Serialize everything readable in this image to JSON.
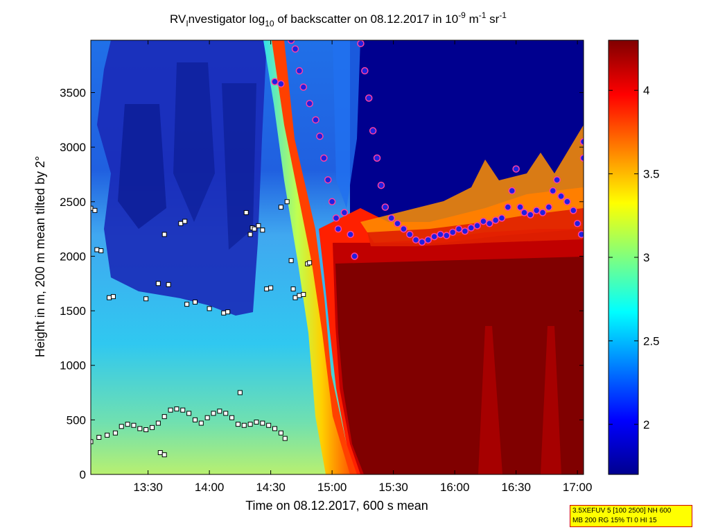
{
  "chart_data": {
    "type": "heatmap",
    "title": {
      "prefix": "RV",
      "prefix_sub": "I",
      "main": "nvestigator log",
      "sub10": "10",
      "mid": " of backscatter on 08.12.2017 in 10",
      "exp9": "-9",
      "unit_m": " m",
      "exp1": "-1",
      "unit_sr": " sr",
      "exp1b": "-1"
    },
    "xlabel": "Time on 08.12.2017, 600 s mean",
    "ylabel": "Height in m, 200 m mean tilted by 2°",
    "x_ticks": [
      "13:30",
      "14:00",
      "14:30",
      "15:00",
      "15:30",
      "16:00",
      "16:30",
      "17:00"
    ],
    "y_ticks": [
      "0",
      "500",
      "1000",
      "1500",
      "2000",
      "2500",
      "3000",
      "3500"
    ],
    "xlim_minutes": [
      782,
      1023
    ],
    "ylim": [
      0,
      3980
    ],
    "colorbar": {
      "ticks": [
        "2",
        "2.5",
        "3",
        "3.5",
        "4"
      ],
      "range": [
        1.7,
        4.3
      ],
      "colormap": "jet"
    },
    "markers": {
      "cloud_top_circles": [
        [
          872,
          3600
        ],
        [
          875,
          3580
        ],
        [
          880,
          3980
        ],
        [
          882,
          3900
        ],
        [
          884,
          3700
        ],
        [
          886,
          3550
        ],
        [
          889,
          3400
        ],
        [
          892,
          3250
        ],
        [
          894,
          3100
        ],
        [
          896,
          2900
        ],
        [
          898,
          2700
        ],
        [
          900,
          2500
        ],
        [
          902,
          2350
        ],
        [
          903,
          2250
        ],
        [
          906,
          2400
        ],
        [
          909,
          2200
        ],
        [
          911,
          2000
        ],
        [
          914,
          3950
        ],
        [
          916,
          3700
        ],
        [
          918,
          3450
        ],
        [
          920,
          3150
        ],
        [
          922,
          2900
        ],
        [
          924,
          2650
        ],
        [
          926,
          2450
        ],
        [
          929,
          2350
        ],
        [
          932,
          2300
        ],
        [
          935,
          2250
        ],
        [
          938,
          2200
        ],
        [
          941,
          2150
        ],
        [
          944,
          2130
        ],
        [
          947,
          2150
        ],
        [
          950,
          2180
        ],
        [
          953,
          2200
        ],
        [
          956,
          2190
        ],
        [
          959,
          2220
        ],
        [
          962,
          2250
        ],
        [
          965,
          2230
        ],
        [
          968,
          2260
        ],
        [
          971,
          2280
        ],
        [
          974,
          2320
        ],
        [
          977,
          2300
        ],
        [
          980,
          2330
        ],
        [
          983,
          2350
        ],
        [
          986,
          2450
        ],
        [
          988,
          2600
        ],
        [
          990,
          2800
        ],
        [
          992,
          2450
        ],
        [
          994,
          2400
        ],
        [
          997,
          2380
        ],
        [
          1000,
          2420
        ],
        [
          1003,
          2400
        ],
        [
          1006,
          2450
        ],
        [
          1008,
          2600
        ],
        [
          1010,
          2700
        ],
        [
          1012,
          2550
        ],
        [
          1015,
          2500
        ],
        [
          1018,
          2420
        ],
        [
          1020,
          2300
        ],
        [
          1022,
          2200
        ],
        [
          1023,
          3050
        ],
        [
          1023,
          2900
        ]
      ],
      "aerosol_squares": [
        [
          782,
          2440
        ],
        [
          784,
          2420
        ],
        [
          785,
          2060
        ],
        [
          787,
          2050
        ],
        [
          791,
          1620
        ],
        [
          793,
          1630
        ],
        [
          809,
          1610
        ],
        [
          815,
          1750
        ],
        [
          818,
          2200
        ],
        [
          820,
          1740
        ],
        [
          826,
          2300
        ],
        [
          828,
          2320
        ],
        [
          829,
          1560
        ],
        [
          833,
          1580
        ],
        [
          840,
          1520
        ],
        [
          847,
          1480
        ],
        [
          849,
          1490
        ],
        [
          855,
          750
        ],
        [
          858,
          2400
        ],
        [
          860,
          2200
        ],
        [
          861,
          2260
        ],
        [
          862,
          2250
        ],
        [
          864,
          2280
        ],
        [
          866,
          2240
        ],
        [
          868,
          1700
        ],
        [
          870,
          1710
        ],
        [
          875,
          2450
        ],
        [
          878,
          2500
        ],
        [
          880,
          1960
        ],
        [
          881,
          1700
        ],
        [
          882,
          1620
        ],
        [
          884,
          1640
        ],
        [
          886,
          1650
        ],
        [
          888,
          1930
        ],
        [
          889,
          1940
        ]
      ],
      "mixing_layer_squares": [
        [
          782,
          300
        ],
        [
          786,
          340
        ],
        [
          790,
          360
        ],
        [
          794,
          380
        ],
        [
          797,
          440
        ],
        [
          800,
          460
        ],
        [
          803,
          450
        ],
        [
          806,
          420
        ],
        [
          809,
          410
        ],
        [
          812,
          430
        ],
        [
          815,
          470
        ],
        [
          818,
          530
        ],
        [
          821,
          590
        ],
        [
          824,
          600
        ],
        [
          827,
          590
        ],
        [
          830,
          560
        ],
        [
          833,
          500
        ],
        [
          836,
          470
        ],
        [
          839,
          520
        ],
        [
          842,
          560
        ],
        [
          845,
          580
        ],
        [
          848,
          560
        ],
        [
          851,
          520
        ],
        [
          854,
          460
        ],
        [
          857,
          450
        ],
        [
          860,
          460
        ],
        [
          863,
          480
        ],
        [
          866,
          470
        ],
        [
          869,
          450
        ],
        [
          872,
          420
        ],
        [
          875,
          380
        ],
        [
          877,
          330
        ],
        [
          778,
          300
        ],
        [
          816,
          200
        ],
        [
          818,
          180
        ]
      ]
    }
  },
  "info_box": {
    "line1": "3.5XEFUV 5 [100 2500] NH 600",
    "line2": "MB 200 RG 15% TI 0 HI 15"
  }
}
